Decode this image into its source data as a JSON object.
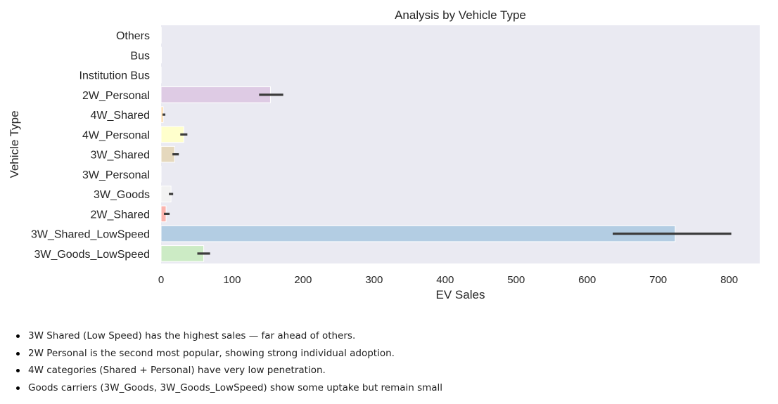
{
  "chart_data": {
    "type": "bar",
    "orientation": "horizontal",
    "title": "Analysis by Vehicle Type",
    "xlabel": "EV Sales",
    "ylabel": "Vehicle Type",
    "xlim": [
      0,
      843
    ],
    "xticks": [
      0,
      100,
      200,
      300,
      400,
      500,
      600,
      700,
      800
    ],
    "grid": false,
    "categories": [
      "Others",
      "Bus",
      "Institution Bus",
      "2W_Personal",
      "4W_Shared",
      "4W_Personal",
      "3W_Shared",
      "3W_Personal",
      "3W_Goods",
      "2W_Shared",
      "3W_Shared_LowSpeed",
      "3W_Goods_LowSpeed"
    ],
    "values": [
      0.3,
      0.5,
      0.2,
      154,
      3,
      32,
      19,
      0.1,
      14,
      7,
      724,
      60
    ],
    "error_bars": [
      null,
      null,
      null,
      [
        138,
        172
      ],
      [
        2,
        6
      ],
      [
        27,
        37
      ],
      [
        16,
        25
      ],
      null,
      [
        11,
        17
      ],
      [
        4,
        12
      ],
      [
        636,
        803
      ],
      [
        51,
        69
      ]
    ],
    "colors": [
      "#fddaec",
      "#f2f2f2",
      "#b3cde3",
      "#decbe4",
      "#fed9a6",
      "#ffffcc",
      "#e5d8bd",
      "#fddaec",
      "#f2f2f2",
      "#fbb4ae",
      "#b3cde3",
      "#ccebc5"
    ],
    "plot_background": "#eaeaf2",
    "error_bar_color": "#3c3c3c"
  },
  "notes": [
    "3W Shared (Low Speed) has the highest sales — far ahead of others.",
    "2W Personal is the second most popular, showing strong individual adoption.",
    "4W categories (Shared + Personal) have very low penetration.",
    "Goods carriers (3W_Goods, 3W_Goods_LowSpeed) show some uptake but remain small"
  ]
}
